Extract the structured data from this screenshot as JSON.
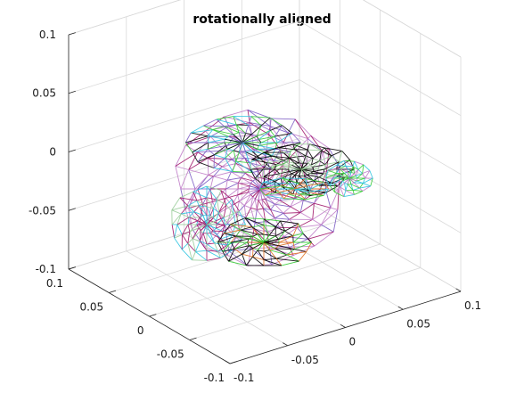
{
  "chart_data": {
    "type": "3d-wireframe-mesh",
    "title": "rotationally aligned",
    "xlabel": "",
    "ylabel": "",
    "zlabel": "",
    "xlim": [
      -0.1,
      0.1
    ],
    "ylim": [
      -0.1,
      0.1
    ],
    "zlim": [
      -0.1,
      0.1
    ],
    "xticks": [
      -0.1,
      -0.05,
      0,
      0.05,
      0.1
    ],
    "yticks": [
      -0.1,
      -0.05,
      0,
      0.05,
      0.1
    ],
    "zticks": [
      -0.1,
      -0.05,
      0,
      0.05,
      0.1
    ],
    "x_tick_labels": [
      "-0.1",
      "-0.05",
      "0",
      "0.05",
      "0.1"
    ],
    "y_tick_labels": [
      "-0.1",
      "-0.05",
      "0",
      "0.05",
      "0.1"
    ],
    "z_tick_labels": [
      "-0.1",
      "-0.05",
      "0",
      "0.05",
      "0.1"
    ],
    "grid": true,
    "series": [
      {
        "color": "#000000"
      },
      {
        "color": "#2ec4e0"
      },
      {
        "color": "#7c5cc4"
      },
      {
        "color": "#c07cc8"
      },
      {
        "color": "#a0166a"
      },
      {
        "color": "#33cc33"
      },
      {
        "color": "#99cc99"
      },
      {
        "color": "#e07020"
      }
    ]
  }
}
